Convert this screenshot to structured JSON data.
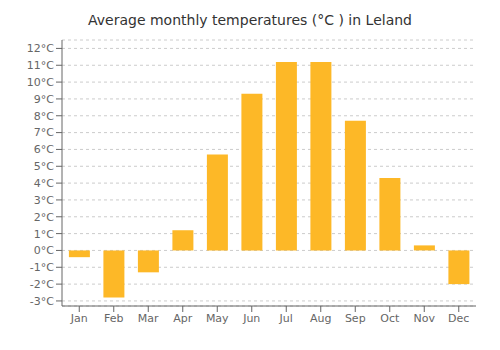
{
  "chart_data": {
    "type": "bar",
    "title": "Average monthly temperatures (°C ) in Leland",
    "categories": [
      "Jan",
      "Feb",
      "Mar",
      "Apr",
      "May",
      "Jun",
      "Jul",
      "Aug",
      "Sep",
      "Oct",
      "Nov",
      "Dec"
    ],
    "values": [
      -0.4,
      -2.8,
      -1.3,
      1.2,
      5.7,
      9.3,
      11.2,
      11.2,
      7.7,
      4.3,
      0.3,
      -2.0
    ],
    "color": "#FDB827",
    "ylim": [
      -3.3,
      12.5
    ],
    "yticks": [
      {
        "value": -3,
        "label": "-3°C"
      },
      {
        "value": -2,
        "label": "-2°C"
      },
      {
        "value": -1,
        "label": "-1°C"
      },
      {
        "value": 0,
        "label": "0°C"
      },
      {
        "value": 1,
        "label": "1°C"
      },
      {
        "value": 2,
        "label": "2°C"
      },
      {
        "value": 3,
        "label": "3°C"
      },
      {
        "value": 4,
        "label": "4°C"
      },
      {
        "value": 5,
        "label": "5°C"
      },
      {
        "value": 6,
        "label": "6°C"
      },
      {
        "value": 7,
        "label": "7°C"
      },
      {
        "value": 8,
        "label": "8°C"
      },
      {
        "value": 9,
        "label": "9°C"
      },
      {
        "value": 10,
        "label": "10°C"
      },
      {
        "value": 11,
        "label": "11°C"
      },
      {
        "value": 12,
        "label": "12°C"
      }
    ],
    "grid": true
  }
}
